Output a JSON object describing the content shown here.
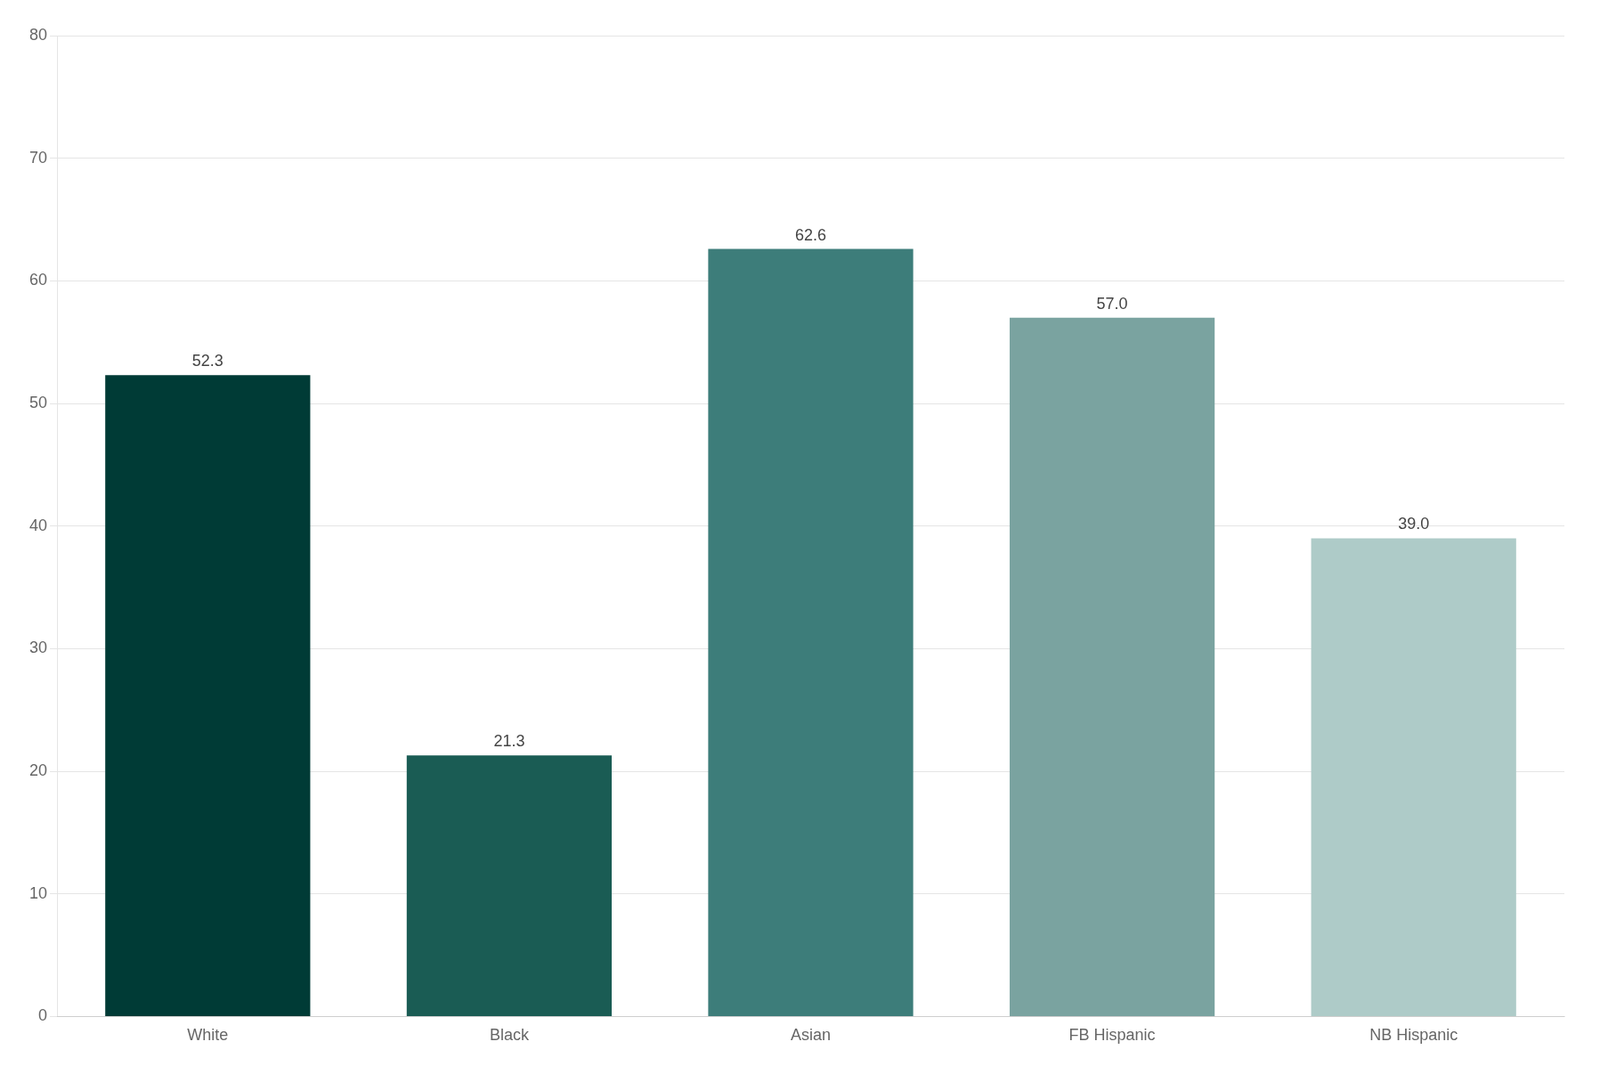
{
  "chart_data": {
    "type": "bar",
    "categories": [
      "White",
      "Black",
      "Asian",
      "FB Hispanic",
      "NB Hispanic"
    ],
    "values": [
      52.3,
      21.3,
      62.6,
      57.0,
      39.0
    ],
    "value_labels": [
      "52.3",
      "21.3",
      "62.6",
      "57.0",
      "39.0"
    ],
    "colors": [
      "#003B36",
      "#1A5C54",
      "#3D7D7A",
      "#7AA3A0",
      "#AECBC8"
    ],
    "ylim": [
      0,
      80
    ],
    "yticks": [
      0,
      10,
      20,
      30,
      40,
      50,
      60,
      70,
      80
    ],
    "grid": true,
    "data_labels": true
  }
}
